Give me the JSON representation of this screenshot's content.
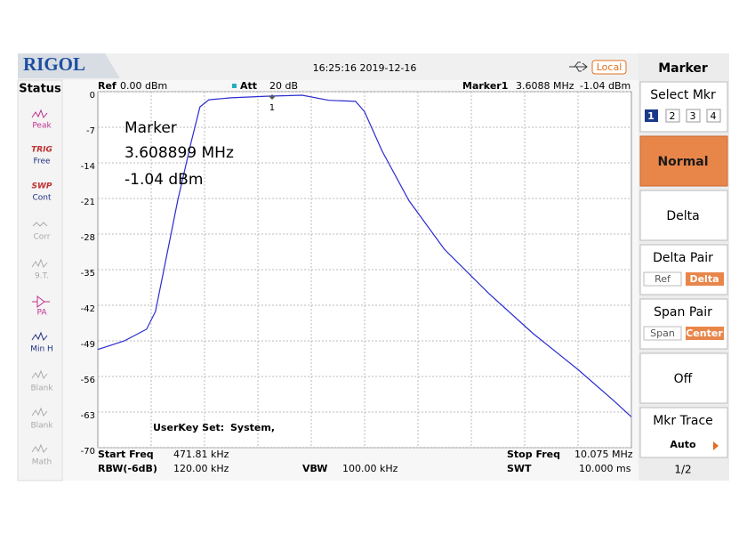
{
  "header": {
    "brand": "RIGOL",
    "datetime": "16:25:16 2019-12-16",
    "mode": "Local"
  },
  "status": {
    "title": "Status",
    "items": [
      {
        "label": "Peak"
      },
      {
        "top": "TRIG",
        "label": "Free"
      },
      {
        "top": "SWP",
        "label": "Cont"
      },
      {
        "label": "Corr"
      },
      {
        "label": "9.T."
      },
      {
        "label": "PA"
      },
      {
        "label": "Min H"
      },
      {
        "label": "Blank"
      },
      {
        "label": "Blank"
      },
      {
        "label": "Math"
      }
    ]
  },
  "info": {
    "ref_label": "Ref",
    "ref": "0.00 dBm",
    "att_label": "Att",
    "att": "20 dB",
    "marker_label": "Marker1",
    "marker_freq": "3.6088 MHz",
    "marker_amp": "-1.04 dBm"
  },
  "annotation": {
    "title": "Marker",
    "freq": "3.608899 MHz",
    "amp": "-1.04 dBm"
  },
  "userkey": {
    "label": "UserKey Set:",
    "value": "System,"
  },
  "footer": {
    "start_label": "Start Freq",
    "start": "471.81 kHz",
    "stop_label": "Stop Freq",
    "stop": "10.075 MHz",
    "rbw_label": "RBW(-6dB)",
    "rbw": "120.00 kHz",
    "vbw_label": "VBW",
    "vbw": "100.00 kHz",
    "swt_label": "SWT",
    "swt": "10.000 ms"
  },
  "menu": {
    "title": "Marker",
    "select": {
      "label": "Select Mkr",
      "options": [
        "1",
        "2",
        "3",
        "4"
      ]
    },
    "normal": "Normal",
    "delta": "Delta",
    "delta_pair": {
      "label": "Delta Pair",
      "options": [
        "Ref",
        "Delta"
      ]
    },
    "span_pair": {
      "label": "Span Pair",
      "options": [
        "Span",
        "Center"
      ]
    },
    "off": "Off",
    "mkr_trace": {
      "label": "Mkr Trace",
      "value": "Auto"
    },
    "page": "1/2"
  },
  "chart_data": {
    "type": "line",
    "x": [
      0.47,
      0.95,
      1.35,
      1.51,
      1.67,
      1.91,
      2.15,
      2.31,
      2.47,
      2.87,
      3.51,
      4.15,
      4.63,
      5.11,
      5.27,
      5.59,
      6.07,
      6.71,
      7.51,
      8.31,
      9.11,
      9.75,
      10.07
    ],
    "series": [
      {
        "color": "#2b2bd0",
        "values": [
          -50.7,
          -49,
          -46.7,
          -43.2,
          -34.5,
          -21.4,
          -10,
          -3,
          -1.6,
          -1.2,
          -0.9,
          -0.7,
          -1.7,
          -1.9,
          -3.9,
          -11.7,
          -21.4,
          -31,
          -39.7,
          -47.6,
          -54.6,
          -60.7,
          -63.9
        ]
      }
    ],
    "xlim": [
      0.47181,
      10.075
    ],
    "ylim": [
      -70,
      0
    ],
    "yticks": [
      0,
      -7,
      -14,
      -21,
      -28,
      -35,
      -42,
      -49,
      -56,
      -63,
      -70
    ],
    "grid": true,
    "marker": {
      "label": "1",
      "x": 3.6088,
      "y": -1.04
    }
  }
}
